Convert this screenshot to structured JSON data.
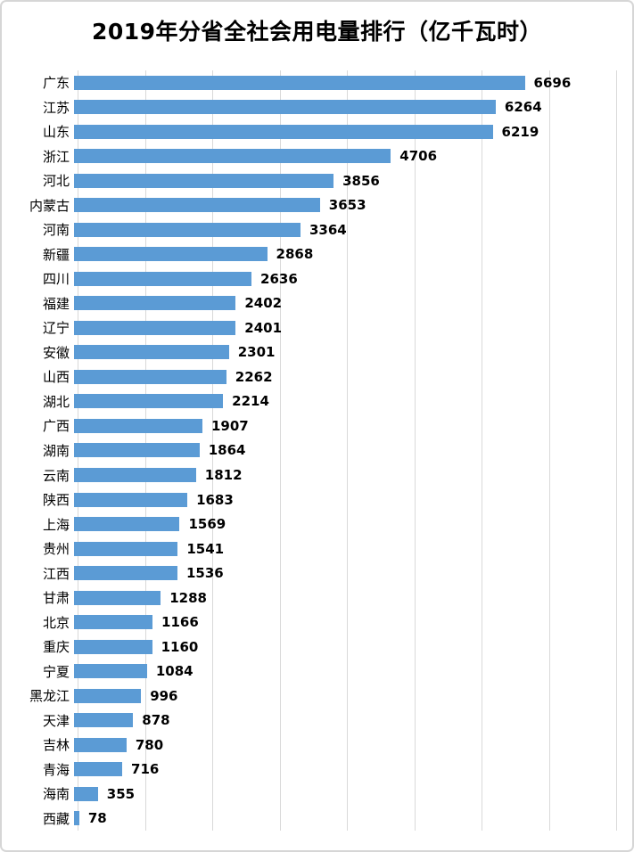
{
  "chart_data": {
    "type": "bar",
    "orientation": "horizontal",
    "title": "2019年分省全社会用电量排行（亿千瓦时）",
    "unit": "亿千瓦时",
    "categories": [
      "广东",
      "江苏",
      "山东",
      "浙江",
      "河北",
      "内蒙古",
      "河南",
      "新疆",
      "四川",
      "福建",
      "辽宁",
      "安徽",
      "山西",
      "湖北",
      "广西",
      "湖南",
      "云南",
      "陕西",
      "上海",
      "贵州",
      "江西",
      "甘肃",
      "北京",
      "重庆",
      "宁夏",
      "黑龙江",
      "天津",
      "吉林",
      "青海",
      "海南",
      "西藏"
    ],
    "values": [
      6696,
      6264,
      6219,
      4706,
      3856,
      3653,
      3364,
      2868,
      2636,
      2402,
      2401,
      2301,
      2262,
      2214,
      1907,
      1864,
      1812,
      1683,
      1569,
      1541,
      1536,
      1288,
      1166,
      1160,
      1084,
      996,
      878,
      780,
      716,
      355,
      78
    ],
    "data_labels": true,
    "xlim": [
      0,
      8000
    ],
    "gridline_interval": 1000,
    "grid": true,
    "legend": "none",
    "x_axis_tick_labels_visible": false,
    "bar_color": "#5B9BD5",
    "gridline_color": "#D9D9D9",
    "text_color": "#000000",
    "background_color": "#FFFFFF"
  }
}
